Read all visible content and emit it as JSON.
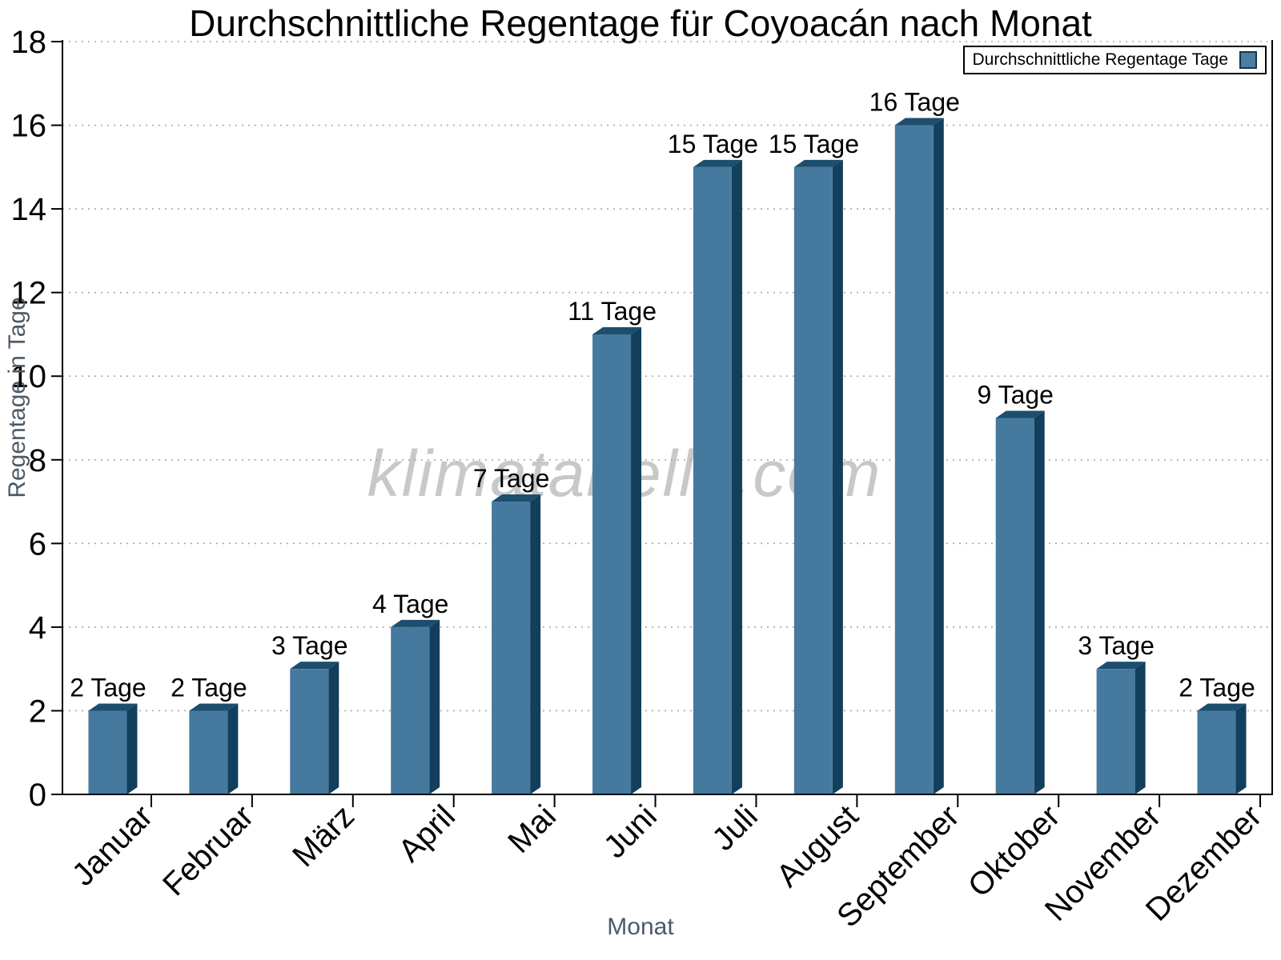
{
  "watermark": "klimatabelle.com",
  "colors": {
    "bar_front": "#45799E",
    "bar_side": "#123F5C",
    "bar_top": "#1D4E6E",
    "grid": "#AAAAAA",
    "axis": "#000000",
    "axis_title": "#4D5A66",
    "bar_label": "#000000",
    "tick_label": "#000000",
    "watermark": "#C8C8C8",
    "legend_swatch": "#4E7DA2"
  },
  "chart_data": {
    "type": "bar",
    "title": "Durchschnittliche Regentage für Coyoacán nach Monat",
    "categories": [
      "Januar",
      "Februar",
      "März",
      "April",
      "Mai",
      "Juni",
      "Juli",
      "August",
      "September",
      "Oktober",
      "November",
      "Dezember"
    ],
    "values": [
      2,
      2,
      3,
      4,
      7,
      11,
      15,
      15,
      16,
      9,
      3,
      2
    ],
    "bar_labels": [
      "2 Tage",
      "2 Tage",
      "3 Tage",
      "4 Tage",
      "7 Tage",
      "11 Tage",
      "15 Tage",
      "15 Tage",
      "16 Tage",
      "9 Tage",
      "3 Tage",
      "2 Tage"
    ],
    "xlabel": "Monat",
    "ylabel": "Regentage in Tage",
    "ylim": [
      0,
      18
    ],
    "ytick_step": 2,
    "yticks": [
      0,
      2,
      4,
      6,
      8,
      10,
      12,
      14,
      16,
      18
    ],
    "legend": [
      "Durchschnittliche Regentage Tage"
    ],
    "legend_position": "top-right",
    "grid": "horizontal dotted"
  }
}
